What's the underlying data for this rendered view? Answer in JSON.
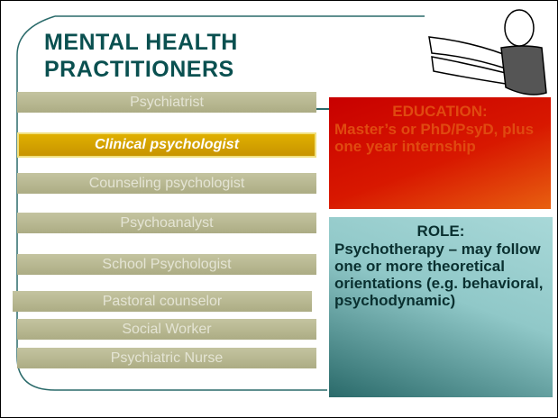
{
  "title": [
    "MENTAL HEALTH",
    "PRACTITIONERS"
  ],
  "practitioners": [
    "Psychiatrist",
    "Clinical psychologist",
    "Counseling psychologist",
    "Psychoanalyst",
    "School Psychologist",
    "Pastoral counselor",
    "Social Worker",
    "Psychiatric Nurse"
  ],
  "education": {
    "heading": "EDUCATION:",
    "text": "Master’s or PhD/PsyD, plus one year internship"
  },
  "role": {
    "heading": "ROLE:",
    "text": "Psychotherapy – may follow one or more theoretical orientations (e.g. behavioral, psychodynamic)"
  }
}
